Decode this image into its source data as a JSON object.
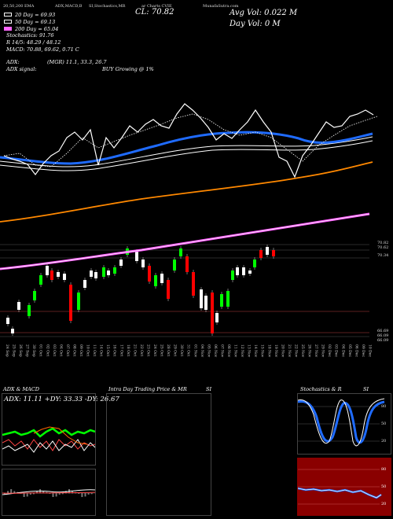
{
  "header": {
    "top_labels": [
      "ADX,MACD,B",
      "SI,Stochastics,MR",
      "ar Charts CVIE",
      "MunafaSutra.com"
    ],
    "close_label": "CL: 70.82",
    "avg_vol": "Avg Vol: 0.022  M",
    "day_vol": "Day Vol: 0  M",
    "left_top": "20,50,200  EMA"
  },
  "legend": [
    {
      "label": "20  Day = 69.93",
      "color": "#ffffff"
    },
    {
      "label": "50  Day = 69.13",
      "color": "#ffffff"
    },
    {
      "label": "200  Day = 65.04",
      "color": "#ff66ff"
    }
  ],
  "indicators": {
    "stochastics": "Stochastics: 91.76",
    "r_line": "R 14/5: 48.29 / 48.12",
    "macd": "MACD: 70.88, 69.62, 0.71 C",
    "adx_label": "ADX:",
    "adx_signal": "ADX  signal:",
    "mgr": "(MGR) 11.1, 33.3, 26.7",
    "buy": "BUY Growing @ 1%"
  },
  "price_labels": {
    "p1": "70.82",
    "p2": "70.62",
    "p3": "70.34",
    "low1": "66.69",
    "low2": "66.09",
    "low3": "66.09"
  },
  "x_labels": [
    "24 Sep",
    "25 Sep",
    "26 Sep",
    "27 Sep",
    "30 Sep",
    "01 Oct",
    "02 Oct",
    "03 Oct",
    "04 Oct",
    "07 Oct",
    "08 Oct",
    "09 Oct",
    "10 Oct",
    "11 Oct",
    "14 Oct",
    "15 Oct",
    "16 Oct",
    "17 Oct",
    "18 Oct",
    "21 Oct",
    "22 Oct",
    "23 Oct",
    "24 Oct",
    "25 Oct",
    "28 Oct",
    "29 Oct",
    "30 Oct",
    "31 Oct",
    "01 Nov",
    "04 Nov",
    "05 Nov",
    "06 Nov",
    "07 Nov",
    "08 Nov",
    "11 Nov",
    "12 Nov",
    "13 Nov",
    "14 Nov",
    "15 Nov",
    "18 Nov",
    "19 Nov",
    "20 Nov",
    "21 Nov",
    "22 Nov",
    "25 Nov",
    "26 Nov",
    "27 Nov",
    "29 Nov",
    "02 Dec",
    "03 Dec",
    "04 Dec",
    "05 Dec",
    "06 Dec",
    "09 Dec",
    "10 Dec"
  ],
  "panels": {
    "adx_title": "ADX  & MACD",
    "adx_values": "ADX: 11.11 +DY: 33.33 -DY: 26.67",
    "intra_title": "Intra  Day Trading Price  & MR",
    "intra_si": "SI",
    "stoch_title": "Stochastics & R",
    "stoch_si": "SI",
    "stoch_levels": [
      "80",
      "50",
      "20"
    ],
    "si_levels": [
      "80",
      "50",
      "20"
    ]
  }
}
